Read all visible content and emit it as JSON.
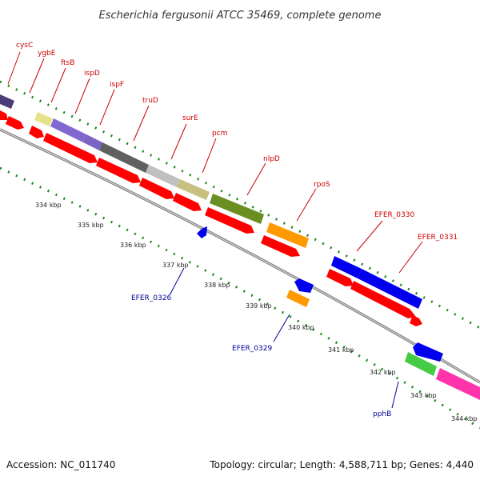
{
  "title": "Escherichia fergusonii ATCC 35469, complete genome",
  "footer": {
    "accession": "Accession: NC_011740",
    "topology": "Topology: circular; Length: 4,588,711 bp; Genes: 4,440"
  },
  "colors": {
    "backbone": "#8a8a8a",
    "forward_arrow": "#ff0000",
    "gene_label_top": "#cc0000",
    "gene_label_bottom": "#000099",
    "gc_ticks": "#1a8a1a"
  },
  "top_labels": [
    "cysC",
    "ygbE",
    "ftsB",
    "ispD",
    "ispF",
    "truD",
    "surE",
    "pcm",
    "nlpD",
    "rpoS",
    "EFER_0330",
    "EFER_0331"
  ],
  "bottom_labels": [
    "EFER_0326",
    "EFER_0329",
    "pphB"
  ],
  "kbp_labels": [
    "334 kbp",
    "335 kbp",
    "336 kbp",
    "337 kbp",
    "338 kbp",
    "339 kbp",
    "340 kbp",
    "341 kbp",
    "342 kbp",
    "343 kbp",
    "344 kbp"
  ]
}
